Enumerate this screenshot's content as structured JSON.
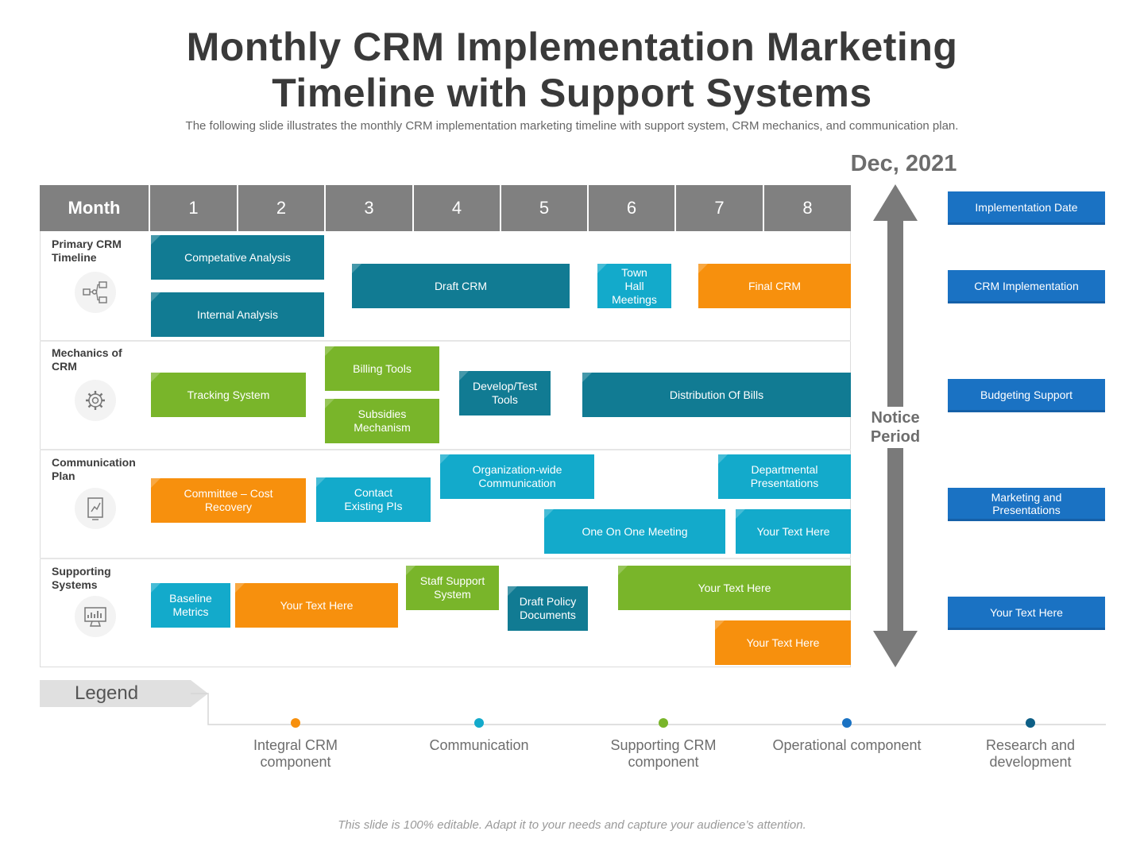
{
  "title_line1": "Monthly CRM Implementation Marketing",
  "title_line2": "Timeline with Support Systems",
  "subtitle": "The following slide illustrates the monthly CRM  implementation  marketing timeline  with support system, CRM mechanics, and communication plan.",
  "date_label": "Dec, 2021",
  "colors": {
    "header_gray": "#808080",
    "teal": "#117b93",
    "cyan": "#13aacb",
    "green": "#79b52a",
    "orange": "#f7900d",
    "blue": "#1a72c3",
    "arrow_gray": "#7a7a7a"
  },
  "header": {
    "month_label": "Month",
    "months": [
      "1",
      "2",
      "3",
      "4",
      "5",
      "6",
      "7",
      "8"
    ]
  },
  "rows": [
    {
      "label": "Primary CRM Timeline",
      "icon": "workflow-icon"
    },
    {
      "label": "Mechanics of CRM",
      "icon": "gear-icon"
    },
    {
      "label": "Communication Plan",
      "icon": "document-chart-icon"
    },
    {
      "label": "Supporting Systems",
      "icon": "monitor-chart-icon"
    }
  ],
  "bars": [
    {
      "text": "Competative Analysis",
      "color": "teal"
    },
    {
      "text": "Internal Analysis",
      "color": "teal"
    },
    {
      "text": "Draft CRM",
      "color": "teal"
    },
    {
      "text": "Town Hall Meetings",
      "color": "cyan"
    },
    {
      "text": "Final CRM",
      "color": "orange"
    },
    {
      "text": "Tracking System",
      "color": "green"
    },
    {
      "text": "Billing Tools",
      "color": "green"
    },
    {
      "text": "Subsidies Mechanism",
      "color": "green"
    },
    {
      "text": "Develop/Test Tools",
      "color": "teal"
    },
    {
      "text": "Distribution Of Bills",
      "color": "teal"
    },
    {
      "text": "Committee – Cost Recovery",
      "color": "orange"
    },
    {
      "text": "Contact Existing PIs",
      "color": "cyan"
    },
    {
      "text": "Organization-wide Communication",
      "color": "cyan"
    },
    {
      "text": "Departmental Presentations",
      "color": "cyan"
    },
    {
      "text": "One On One Meeting",
      "color": "cyan"
    },
    {
      "text": "Your Text Here",
      "color": "cyan"
    },
    {
      "text": "Baseline Metrics",
      "color": "cyan"
    },
    {
      "text": "Your Text Here",
      "color": "orange"
    },
    {
      "text": "Staff Support System",
      "color": "green"
    },
    {
      "text": "Draft Policy Documents",
      "color": "teal"
    },
    {
      "text": "Your Text Here",
      "color": "green"
    },
    {
      "text": "Your Text Here",
      "color": "orange"
    }
  ],
  "notice_period": "Notice Period",
  "side_items": [
    "Implementation Date",
    "CRM Implementation",
    "Budgeting Support",
    "Marketing  and Presentations",
    "Your Text Here"
  ],
  "legend": {
    "title": "Legend",
    "items": [
      {
        "label": "Integral CRM component",
        "color": "#f7900d"
      },
      {
        "label": "Communication",
        "color": "#13aacb"
      },
      {
        "label": "Supporting CRM component",
        "color": "#79b52a"
      },
      {
        "label": "Operational component",
        "color": "#1a72c3"
      },
      {
        "label": "Research and development",
        "color": "#0e5f86"
      }
    ]
  },
  "footer": "This slide is 100% editable. Adapt it to your needs and capture your audience’s attention."
}
